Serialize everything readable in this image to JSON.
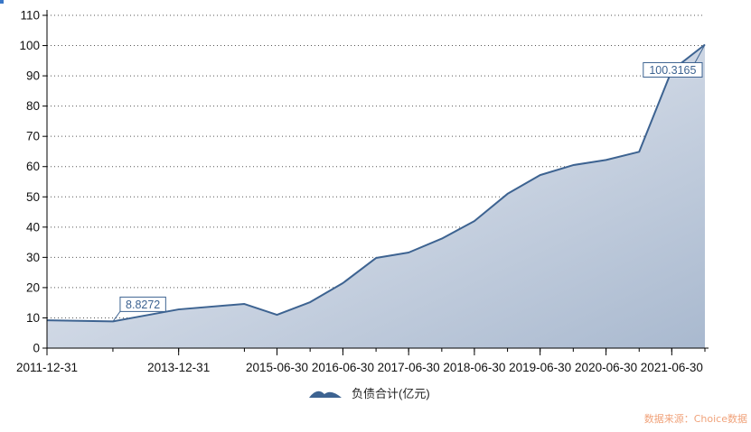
{
  "chart_data": {
    "type": "area",
    "title": "",
    "xlabel": "",
    "ylabel": "",
    "ylim": [
      0,
      110
    ],
    "yticks": [
      0,
      10,
      20,
      30,
      40,
      50,
      60,
      70,
      80,
      90,
      100,
      110
    ],
    "x_tick_labels": [
      "2011-12-31",
      "2013-12-31",
      "2015-06-30",
      "2016-06-30",
      "2017-06-30",
      "2018-06-30",
      "2019-06-30",
      "2020-06-30",
      "2021-06-30"
    ],
    "grid": "horizontal-dotted",
    "legend_position": "bottom-center",
    "series": [
      {
        "name": "负债合计(亿元)",
        "color": "#3d6391",
        "points": [
          {
            "x": "2011-12-31",
            "y": 9.2
          },
          {
            "x": "2012-12-31",
            "y": 8.8272
          },
          {
            "x": "2013-12-31",
            "y": 12.8
          },
          {
            "x": "2014-12-31",
            "y": 14.6
          },
          {
            "x": "2015-06-30",
            "y": 11.0
          },
          {
            "x": "2015-12-31",
            "y": 15.2
          },
          {
            "x": "2016-06-30",
            "y": 21.5
          },
          {
            "x": "2016-12-31",
            "y": 29.8
          },
          {
            "x": "2017-06-30",
            "y": 31.6
          },
          {
            "x": "2017-12-31",
            "y": 36.2
          },
          {
            "x": "2018-06-30",
            "y": 42.0
          },
          {
            "x": "2018-12-31",
            "y": 51.0
          },
          {
            "x": "2019-06-30",
            "y": 57.2
          },
          {
            "x": "2019-12-31",
            "y": 60.5
          },
          {
            "x": "2020-06-30",
            "y": 62.2
          },
          {
            "x": "2020-12-31",
            "y": 64.9
          },
          {
            "x": "2021-06-30",
            "y": 91.8
          },
          {
            "x": "2021-12-31",
            "y": 100.3165
          }
        ]
      }
    ],
    "annotations": [
      {
        "text": "8.8272",
        "x": "2012-12-31",
        "y": 8.8272
      },
      {
        "text": "100.3165",
        "x": "2021-12-31",
        "y": 100.3165
      }
    ]
  },
  "legend": {
    "label": "负债合计(亿元)"
  },
  "source": {
    "text": "数据来源：Choice数据"
  },
  "colors": {
    "line": "#3d6391",
    "fill_light": "#e9edf4",
    "fill_dark": "#aebdd1",
    "axis": "#000000",
    "grid": "#444444",
    "source": "#f0a27a"
  }
}
